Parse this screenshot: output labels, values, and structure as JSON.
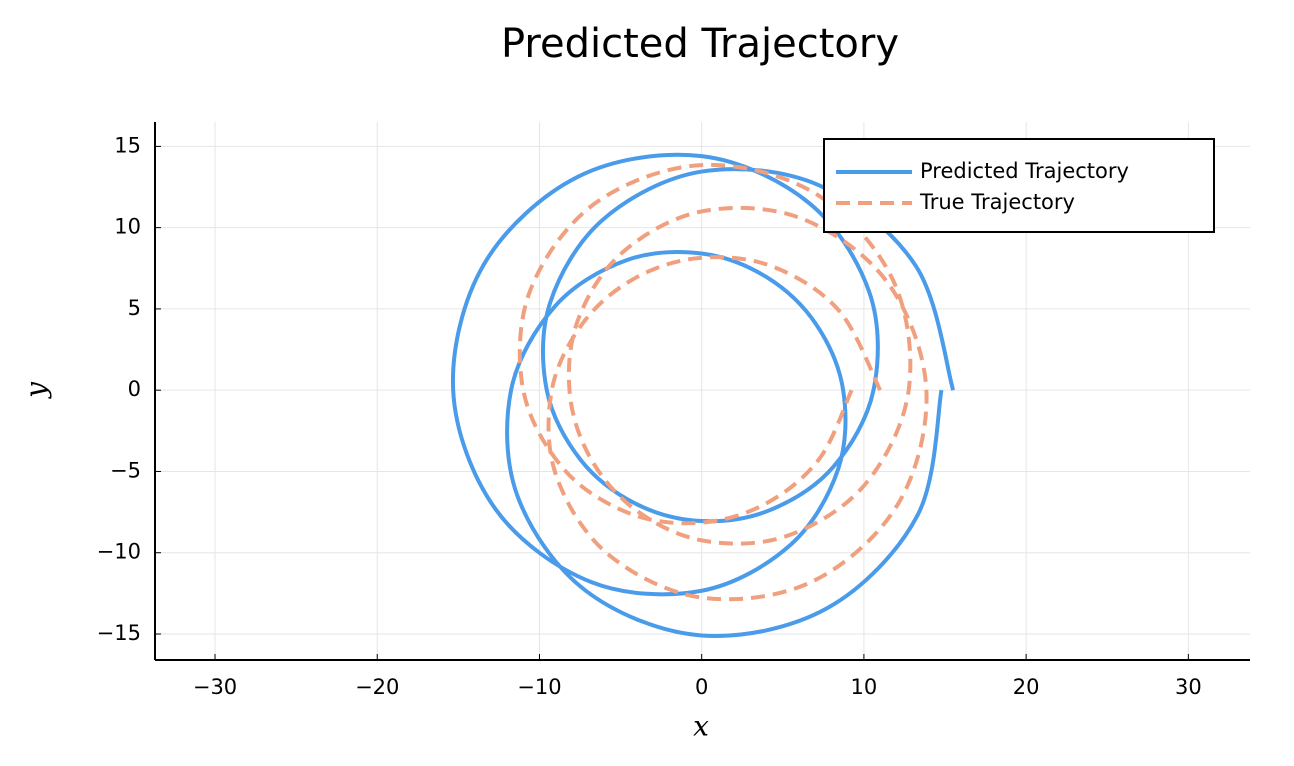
{
  "chart_data": {
    "type": "line",
    "title": "Predicted Trajectory",
    "xlabel": "x",
    "ylabel": "y",
    "xlim": [
      -33.7,
      33.8
    ],
    "ylim": [
      -16.6,
      16.5
    ],
    "xticks": [
      {
        "value": -30,
        "label": "−30"
      },
      {
        "value": -20,
        "label": "−20"
      },
      {
        "value": -10,
        "label": "−10"
      },
      0,
      10,
      20,
      30
    ],
    "yticks": [
      {
        "value": -15,
        "label": "−15"
      },
      {
        "value": -10,
        "label": "−10"
      },
      {
        "value": -5,
        "label": "−5"
      },
      0,
      5,
      10,
      15
    ],
    "grid": true,
    "legend": "top-right",
    "series": [
      {
        "name": "Predicted Trajectory",
        "color": "#4a9bea",
        "dashed": false,
        "x": [
          15.5,
          13.21,
          7.27,
          0,
          -6.07,
          -9.34,
          -9.55,
          -7.45,
          -4.04,
          0,
          4.25,
          8.13,
          10.59,
          10.35,
          6.64,
          0,
          -7.59,
          -13.42,
          -15.32,
          -12.7,
          -6.82,
          0,
          5.49,
          8.41,
          8.72,
          7.04,
          4.01,
          0,
          -4.62,
          -9.01,
          -11.75,
          -11.34,
          -7.13,
          0,
          7.74,
          13.31,
          14.78
        ],
        "values": [
          0,
          7.63,
          12.59,
          13.45,
          10.51,
          5.39,
          0,
          -4.3,
          -7.0,
          -8.05,
          -7.36,
          -4.7,
          0,
          5.98,
          11.5,
          14.4,
          13.15,
          7.75,
          0,
          -7.33,
          -11.8,
          -12.34,
          -9.5,
          -4.86,
          0,
          4.07,
          6.95,
          8.41,
          8.0,
          5.2,
          0,
          -6.55,
          -12.35,
          -15.09,
          -13.41,
          -7.69,
          0
        ]
      },
      {
        "name": "True Trajectory",
        "color": "#f0a07e",
        "dashed": true,
        "x": [
          11,
          8.47,
          4.39,
          0,
          -4.01,
          -7.27,
          -9.24,
          -8.99,
          -5.81,
          0,
          6.8,
          12.11,
          13.85,
          11.46,
          6.11,
          0,
          -4.89,
          -7.6,
          -8.15,
          -6.95,
          -4.2,
          0,
          5.19,
          10.06,
          12.76,
          11.78,
          6.99,
          0,
          -6.62,
          -10.58,
          -11,
          -8.47,
          -4.39,
          0,
          4.01,
          7.27,
          9.24
        ],
        "values": [
          0,
          4.89,
          7.6,
          8.15,
          6.95,
          4.2,
          0,
          -5.19,
          -10.06,
          -12.76,
          -11.78,
          -6.99,
          0,
          6.62,
          10.58,
          11,
          8.47,
          4.39,
          0,
          -4.01,
          -7.27,
          -9.24,
          -8.99,
          -5.81,
          0,
          6.8,
          12.11,
          13.85,
          11.46,
          6.11,
          0,
          -4.89,
          -7.6,
          -8.15,
          -6.95,
          -4.2,
          0
        ]
      }
    ]
  }
}
